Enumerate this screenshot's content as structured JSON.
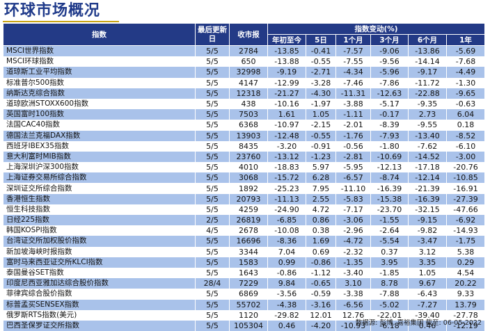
{
  "title": "环球市场概况",
  "header": {
    "index": "指数",
    "last_update": "最后更新日",
    "close": "收市报",
    "change_group": "指数变动(%)",
    "periods": [
      "年初至今",
      "5日",
      "1个月",
      "3个月",
      "6个月",
      "1年"
    ]
  },
  "rows": [
    {
      "name": "MSCI世界指数",
      "date": "5/5",
      "close": "2784",
      "ytd": "-13.85",
      "d5": "-0.41",
      "m1": "-7.57",
      "m3": "-9.06",
      "m6": "-13.86",
      "y1": "-5.69"
    },
    {
      "name": "MSCI环球指数",
      "date": "5/5",
      "close": "650",
      "ytd": "-13.88",
      "d5": "-0.55",
      "m1": "-7.55",
      "m3": "-9.56",
      "m6": "-14.14",
      "y1": "-7.68"
    },
    {
      "name": "道琼斯工业平均指数",
      "date": "5/5",
      "close": "32998",
      "ytd": "-9.19",
      "d5": "-2.71",
      "m1": "-4.34",
      "m3": "-5.96",
      "m6": "-9.17",
      "y1": "-4.49"
    },
    {
      "name": "标准普尔500指数",
      "date": "5/5",
      "close": "4147",
      "ytd": "-12.99",
      "d5": "-3.28",
      "m1": "-7.46",
      "m3": "-7.86",
      "m6": "-11.72",
      "y1": "-1.30"
    },
    {
      "name": "纳斯达克综合指数",
      "date": "5/5",
      "close": "12318",
      "ytd": "-21.27",
      "d5": "-4.30",
      "m1": "-11.31",
      "m3": "-12.63",
      "m6": "-22.88",
      "y1": "-9.65"
    },
    {
      "name": "道琼欧洲STOXX600指数",
      "date": "5/5",
      "close": "438",
      "ytd": "-10.16",
      "d5": "-1.97",
      "m1": "-3.88",
      "m3": "-5.17",
      "m6": "-9.35",
      "y1": "-0.63"
    },
    {
      "name": "英国富时100指数",
      "date": "5/5",
      "close": "7503",
      "ytd": "1.61",
      "d5": "1.05",
      "m1": "-1.11",
      "m3": "-0.17",
      "m6": "2.73",
      "y1": "6.04"
    },
    {
      "name": "法国CAC40指数",
      "date": "5/5",
      "close": "6368",
      "ytd": "-10.97",
      "d5": "-2.15",
      "m1": "-2.01",
      "m3": "-8.39",
      "m6": "-9.55",
      "y1": "0.18"
    },
    {
      "name": "德国法兰克福DAX指数",
      "date": "5/5",
      "close": "13903",
      "ytd": "-12.48",
      "d5": "-0.55",
      "m1": "-1.76",
      "m3": "-7.93",
      "m6": "-13.40",
      "y1": "-8.52"
    },
    {
      "name": "西班牙IBEX35指数",
      "date": "5/5",
      "close": "8435",
      "ytd": "-3.20",
      "d5": "-0.91",
      "m1": "-0.56",
      "m3": "-1.80",
      "m6": "-7.62",
      "y1": "-6.10"
    },
    {
      "name": "意大利富时MIB指数",
      "date": "5/5",
      "close": "23760",
      "ytd": "-13.12",
      "d5": "-1.23",
      "m1": "-2.81",
      "m3": "-10.69",
      "m6": "-14.52",
      "y1": "-3.00"
    },
    {
      "name": "上海深圳沪深300指数",
      "date": "5/5",
      "close": "4010",
      "ytd": "-18.83",
      "d5": "5.97",
      "m1": "-5.95",
      "m3": "-12.13",
      "m6": "-17.18",
      "y1": "-20.76"
    },
    {
      "name": "上海证券交易所综合指数",
      "date": "5/5",
      "close": "3068",
      "ytd": "-15.72",
      "d5": "6.28",
      "m1": "-6.57",
      "m3": "-8.74",
      "m6": "-12.14",
      "y1": "-10.85"
    },
    {
      "name": "深圳证交所综合指数",
      "date": "5/5",
      "close": "1892",
      "ytd": "-25.23",
      "d5": "7.95",
      "m1": "-11.10",
      "m3": "-16.39",
      "m6": "-21.39",
      "y1": "-16.91"
    },
    {
      "name": "香港恒生指数",
      "date": "5/5",
      "close": "20793",
      "ytd": "-11.13",
      "d5": "2.55",
      "m1": "-5.83",
      "m3": "-15.38",
      "m6": "-16.39",
      "y1": "-27.39"
    },
    {
      "name": "恒生科技指数",
      "date": "5/5",
      "close": "4259",
      "ytd": "-24.90",
      "d5": "4.72",
      "m1": "-7.17",
      "m3": "-23.70",
      "m6": "-32.15",
      "y1": "-47.66"
    },
    {
      "name": "日经225指数",
      "date": "2/5",
      "close": "26819",
      "ytd": "-6.85",
      "d5": "0.86",
      "m1": "-3.06",
      "m3": "-1.55",
      "m6": "-9.15",
      "y1": "-6.92"
    },
    {
      "name": "韩国KOSPI指数",
      "date": "4/5",
      "close": "2678",
      "ytd": "-10.08",
      "d5": "0.38",
      "m1": "-2.96",
      "m3": "-2.64",
      "m6": "-9.82",
      "y1": "-14.93"
    },
    {
      "name": "台湾证交所加权股价指数",
      "date": "5/5",
      "close": "16696",
      "ytd": "-8.36",
      "d5": "1.69",
      "m1": "-4.72",
      "m3": "-5.54",
      "m6": "-3.47",
      "y1": "-1.75"
    },
    {
      "name": "新加坡海峡时报指数",
      "date": "5/5",
      "close": "3344",
      "ytd": "7.04",
      "d5": "0.69",
      "m1": "-2.32",
      "m3": "0.37",
      "m6": "3.12",
      "y1": "5.38"
    },
    {
      "name": "富时马来西亚证交所KLCI指数",
      "date": "5/5",
      "close": "1583",
      "ytd": "0.99",
      "d5": "-0.86",
      "m1": "-1.35",
      "m3": "3.95",
      "m6": "3.35",
      "y1": "0.29"
    },
    {
      "name": "泰国曼谷SET指数",
      "date": "5/5",
      "close": "1643",
      "ytd": "-0.86",
      "d5": "-1.12",
      "m1": "-3.40",
      "m3": "-1.85",
      "m6": "1.05",
      "y1": "4.54"
    },
    {
      "name": "印度尼西亚雅加达综合股价指数",
      "date": "28/4",
      "close": "7229",
      "ytd": "9.84",
      "d5": "-0.65",
      "m1": "3.10",
      "m3": "8.78",
      "m6": "9.67",
      "y1": "20.22"
    },
    {
      "name": "菲律宾综合股价指数",
      "date": "5/5",
      "close": "6869",
      "ytd": "-3.56",
      "d5": "-0.59",
      "m1": "-3.38",
      "m3": "-7.88",
      "m6": "-6.43",
      "y1": "9.33"
    },
    {
      "name": "标普孟买SENSEX指数",
      "date": "5/5",
      "close": "55702",
      "ytd": "-4.38",
      "d5": "-3.16",
      "m1": "-6.56",
      "m3": "-5.02",
      "m6": "-7.27",
      "y1": "13.79"
    },
    {
      "name": "俄罗斯RTS指数(美元)",
      "date": "5/5",
      "close": "1120",
      "ytd": "-29.82",
      "d5": "12.01",
      "m1": "12.76",
      "m3": "-22.01",
      "m6": "-39.40",
      "y1": "-27.78"
    },
    {
      "name": "巴西圣保罗证交所指数",
      "date": "5/5",
      "close": "105304",
      "ytd": "0.46",
      "d5": "-4.20",
      "m1": "-10.93",
      "m3": "-6.18",
      "m6": "0.46",
      "y1": "-12.19"
    }
  ],
  "source": "数据源: 彭博, 嘉裕集团 截至: 06-05-2022",
  "colors": {
    "header_bg": "#233a86",
    "band": "#a9c2ea",
    "title": "#1f3a8a",
    "rule": "#c8a416"
  }
}
